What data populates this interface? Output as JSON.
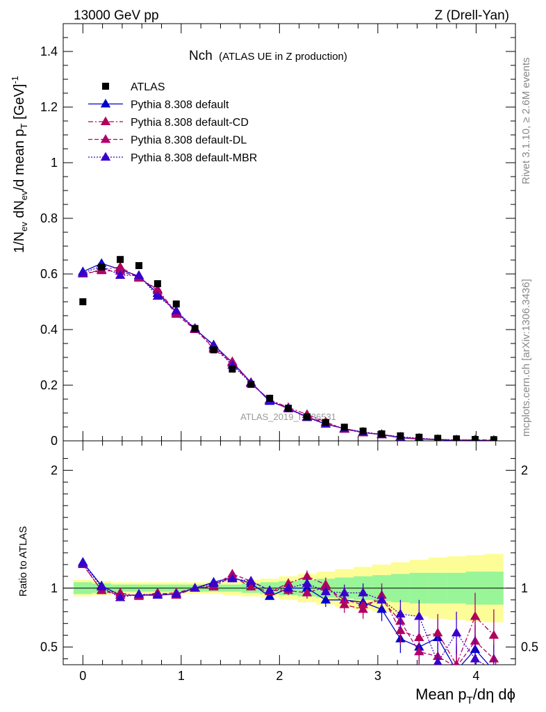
{
  "header": {
    "left": "13000 GeV pp",
    "right": "Z (Drell-Yan)"
  },
  "side_labels": {
    "rivet": "Rivet 3.1.10, ≥ 2.6M events",
    "mcplots": "mcplots.cern.ch [arXiv:1306.3436]"
  },
  "colors": {
    "atlas": "#000000",
    "default": "#0000cc",
    "cd": "#b0005a",
    "dl": "#b0006a",
    "mbr": "#3a00cc",
    "band_inner": "#98f598",
    "band_outer": "#fdfd98"
  },
  "chart_data": {
    "type": "scatter",
    "title_main": "Nch",
    "title_sub": "(ATLAS UE in Z production)",
    "watermark": "ATLAS_2019_I1736531",
    "xlabel": "Mean p_T/dη dϕ",
    "ylabel_main": "1/N_ev dN_ev/d mean p_T [GeV]^-1",
    "ylabel_ratio": "Ratio to ATLAS",
    "xlim": [
      -0.2,
      4.4
    ],
    "ylim_main": [
      0,
      1.5
    ],
    "ylim_ratio": [
      0.35,
      2.25
    ],
    "x_ticks": [
      "0",
      "1",
      "2",
      "3",
      "4"
    ],
    "y_ticks_main": [
      "0",
      "0.2",
      "0.4",
      "0.6",
      "0.8",
      "1",
      "1.2",
      "1.4"
    ],
    "y_ticks_ratio": [
      "0.5",
      "1",
      "2"
    ],
    "legend_position": "top-left",
    "x": [
      0.0,
      0.19,
      0.38,
      0.57,
      0.76,
      0.95,
      1.14,
      1.33,
      1.52,
      1.71,
      1.9,
      2.09,
      2.28,
      2.47,
      2.66,
      2.85,
      3.04,
      3.23,
      3.42,
      3.61,
      3.8,
      3.99,
      4.18
    ],
    "series": [
      {
        "name": "ATLAS",
        "style": "marker",
        "values": [
          0.5,
          0.625,
          0.652,
          0.63,
          0.565,
          0.492,
          0.404,
          0.327,
          0.258,
          0.203,
          0.153,
          0.117,
          0.086,
          0.066,
          0.049,
          0.035,
          0.025,
          0.018,
          0.013,
          0.009,
          0.007,
          0.005,
          0.004
        ],
        "ratio": [
          1,
          1,
          1,
          1,
          1,
          1,
          1,
          1,
          1,
          1,
          1,
          1,
          1,
          1,
          1,
          1,
          1,
          1,
          1,
          1,
          1,
          1,
          1
        ]
      },
      {
        "name": "Pythia 8.308 default",
        "style": "solid",
        "values": [
          0.608,
          0.638,
          0.616,
          0.592,
          0.53,
          0.464,
          0.402,
          0.345,
          0.282,
          0.21,
          0.142,
          0.117,
          0.086,
          0.06,
          0.044,
          0.03,
          0.022,
          0.011,
          0.0065,
          0.004,
          0.001,
          0.002,
          0.0005
        ],
        "ratio": [
          1.22,
          1.02,
          0.94,
          0.94,
          0.94,
          0.95,
          1.0,
          1.05,
          1.09,
          1.04,
          0.93,
          1.0,
          1.0,
          0.9,
          0.9,
          0.88,
          0.82,
          0.57,
          0.5,
          0.58,
          0.3,
          0.48,
          0.3
        ],
        "ratio_err": [
          0.02,
          0.02,
          0.02,
          0.02,
          0.02,
          0.02,
          0.02,
          0.02,
          0.03,
          0.03,
          0.03,
          0.04,
          0.05,
          0.06,
          0.07,
          0.08,
          0.1,
          0.12,
          0.14,
          0.16,
          0.18,
          0.2,
          0.22
        ]
      },
      {
        "name": "Pythia 8.308 default-CD",
        "style": "dashdot",
        "values": [
          0.6,
          0.615,
          0.625,
          0.585,
          0.545,
          0.46,
          0.405,
          0.33,
          0.28,
          0.205,
          0.148,
          0.12,
          0.095,
          0.068,
          0.042,
          0.029,
          0.024,
          0.012,
          0.0075,
          0.0055,
          0.0025,
          0.0038,
          0.0024
        ],
        "ratio": [
          1.2,
          0.98,
          0.96,
          0.93,
          0.96,
          0.94,
          1.0,
          1.01,
          1.1,
          1.01,
          0.97,
          1.04,
          1.1,
          1.03,
          0.86,
          0.82,
          0.94,
          0.64,
          0.58,
          0.62,
          0.35,
          0.76,
          0.6
        ],
        "ratio_err": [
          0.02,
          0.02,
          0.02,
          0.02,
          0.02,
          0.02,
          0.02,
          0.02,
          0.03,
          0.03,
          0.03,
          0.04,
          0.05,
          0.06,
          0.07,
          0.08,
          0.1,
          0.12,
          0.14,
          0.16,
          0.18,
          0.2,
          0.22
        ]
      },
      {
        "name": "Pythia 8.308 default-DL",
        "style": "dashed",
        "values": [
          0.6,
          0.612,
          0.61,
          0.588,
          0.54,
          0.455,
          0.4,
          0.335,
          0.285,
          0.21,
          0.145,
          0.115,
          0.085,
          0.066,
          0.042,
          0.03,
          0.022,
          0.013,
          0.0075,
          0.0055,
          0.0025,
          0.0038,
          0.0024
        ],
        "ratio": [
          1.2,
          0.98,
          0.94,
          0.94,
          0.95,
          0.96,
          1.0,
          1.02,
          1.12,
          1.06,
          0.98,
          0.98,
          0.96,
          1.01,
          0.9,
          0.86,
          0.9,
          0.72,
          0.46,
          0.42,
          0.33,
          0.55,
          0.4
        ],
        "ratio_err": [
          0.02,
          0.02,
          0.02,
          0.02,
          0.02,
          0.02,
          0.02,
          0.02,
          0.03,
          0.03,
          0.03,
          0.04,
          0.05,
          0.06,
          0.07,
          0.08,
          0.1,
          0.12,
          0.14,
          0.16,
          0.18,
          0.2,
          0.22
        ]
      },
      {
        "name": "Pythia 8.308 default-MBR",
        "style": "dotted",
        "values": [
          0.603,
          0.628,
          0.595,
          0.595,
          0.52,
          0.468,
          0.404,
          0.342,
          0.272,
          0.208,
          0.146,
          0.116,
          0.084,
          0.06,
          0.044,
          0.032,
          0.023,
          0.014,
          0.01,
          0.004,
          0.004,
          0.002,
          0.001
        ],
        "ratio": [
          1.21,
          1.01,
          0.92,
          0.95,
          0.94,
          0.95,
          1.0,
          1.04,
          1.08,
          1.06,
          0.98,
          1.0,
          1.04,
          0.97,
          0.96,
          0.96,
          0.9,
          0.78,
          0.76,
          0.37,
          0.62,
          0.4,
          0.3
        ],
        "ratio_err": [
          0.02,
          0.02,
          0.02,
          0.02,
          0.02,
          0.02,
          0.02,
          0.02,
          0.03,
          0.03,
          0.03,
          0.04,
          0.05,
          0.06,
          0.07,
          0.08,
          0.1,
          0.12,
          0.14,
          0.16,
          0.18,
          0.2,
          0.22
        ]
      }
    ],
    "uncertainty_band": {
      "inner": [
        0.05,
        0.04,
        0.03,
        0.03,
        0.03,
        0.03,
        0.03,
        0.03,
        0.03,
        0.04,
        0.05,
        0.06,
        0.07,
        0.08,
        0.09,
        0.1,
        0.11,
        0.12,
        0.13,
        0.13,
        0.13,
        0.14,
        0.14
      ],
      "outer": [
        0.07,
        0.06,
        0.05,
        0.05,
        0.05,
        0.05,
        0.05,
        0.05,
        0.06,
        0.07,
        0.08,
        0.1,
        0.12,
        0.14,
        0.16,
        0.18,
        0.2,
        0.22,
        0.24,
        0.26,
        0.27,
        0.28,
        0.29
      ]
    }
  }
}
